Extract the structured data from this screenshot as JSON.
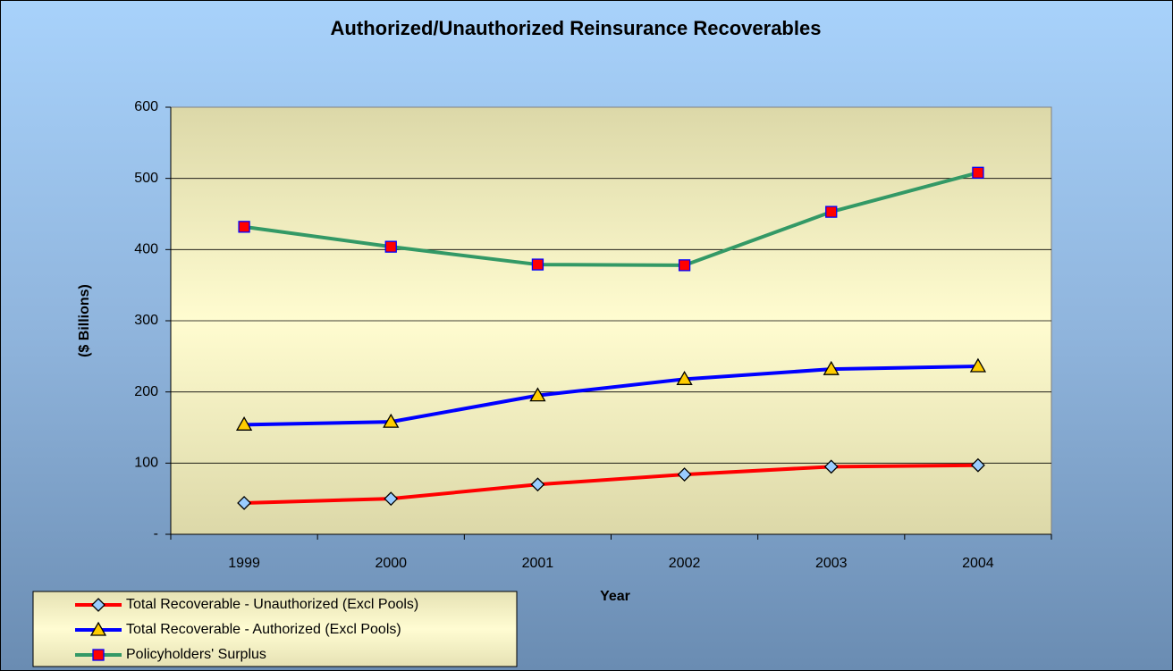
{
  "chart_data": {
    "type": "line",
    "title": "Authorized/Unauthorized Reinsurance Recoverables",
    "x_label": "Year",
    "y_label": "($ Billions)",
    "categories": [
      "1999",
      "2000",
      "2001",
      "2002",
      "2003",
      "2004"
    ],
    "series": [
      {
        "name": "Total Recoverable - Unauthorized (Excl Pools)",
        "color": "#ff0000",
        "marker": "diamond",
        "marker_color": "#99ccff",
        "values": [
          44,
          50,
          70,
          84,
          95,
          97
        ]
      },
      {
        "name": "Total Recoverable - Authorized (Excl Pools)",
        "color": "#0000ff",
        "marker": "triangle",
        "marker_color": "#ffcc00",
        "values": [
          154,
          158,
          195,
          218,
          232,
          236
        ]
      },
      {
        "name": "Policyholders' Surplus",
        "color": "#339966",
        "marker": "square",
        "marker_color": "#ff0000",
        "values": [
          432,
          404,
          379,
          378,
          453,
          508
        ]
      }
    ],
    "ylim": [
      0,
      600
    ],
    "yticks": [
      {
        "value": 0,
        "label": "-"
      },
      100,
      200,
      300,
      400,
      500,
      600
    ],
    "grid": true,
    "legend": "bottom-left"
  }
}
